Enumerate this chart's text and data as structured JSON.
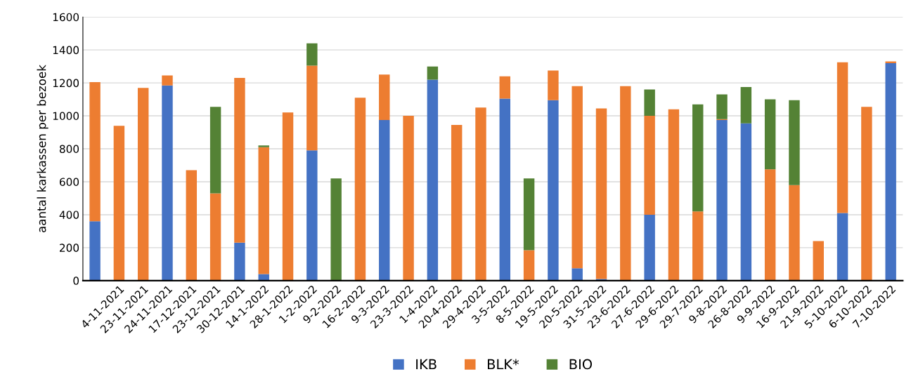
{
  "chart_data": {
    "type": "bar",
    "stacked": true,
    "ylabel": "aantal karkassen per bezoek",
    "categories": [
      null,
      "4-11-2021",
      "23-11-2021",
      "24-11-2021",
      "17-12-2021",
      "23-12-2021",
      "30-12-2021",
      "14-1-2022",
      "28-1-2022",
      "1-2-2022",
      "9-2-2022",
      "16-2-2022",
      "9-3-2022",
      "23-3-2022",
      "1-4-2022",
      "20-4-2022",
      "29-4-2022",
      "3-5-2022",
      "8-5-2022",
      "19-5-2022",
      "20-5-2022",
      "31-5-2022",
      "23-6-2022",
      "27-6-2022",
      "29-6-2022",
      "29-7-2022",
      "9-8-2022",
      "26-8-2022",
      "9-9-2022",
      "16-9-2022",
      "21-9-2022",
      "5-10-2022",
      "6-10-2022",
      "7-10-2022"
    ],
    "series": [
      {
        "name": "IKB",
        "color": "#4472c4",
        "values": [
          360,
          null,
          null,
          1185,
          null,
          null,
          230,
          40,
          null,
          790,
          null,
          null,
          975,
          null,
          1220,
          null,
          null,
          1105,
          null,
          1095,
          75,
          10,
          null,
          400,
          null,
          null,
          975,
          955,
          null,
          null,
          null,
          410,
          null,
          1320
        ]
      },
      {
        "name": "BLK*",
        "color": "#ed7d31",
        "values": [
          845,
          940,
          1170,
          60,
          670,
          530,
          1000,
          770,
          1020,
          515,
          null,
          1110,
          275,
          1000,
          null,
          945,
          1050,
          135,
          185,
          180,
          1105,
          1035,
          1180,
          600,
          1040,
          420,
          5,
          null,
          675,
          580,
          240,
          915,
          1055,
          10
        ]
      },
      {
        "name": "BIO",
        "color": "#548235",
        "values": [
          null,
          null,
          null,
          null,
          null,
          525,
          null,
          10,
          null,
          135,
          620,
          null,
          null,
          null,
          80,
          null,
          null,
          null,
          435,
          null,
          null,
          null,
          null,
          160,
          null,
          650,
          150,
          220,
          425,
          515,
          null,
          null,
          null,
          null
        ]
      }
    ],
    "ylim": [
      0,
      1600
    ],
    "yticks": [
      0,
      200,
      400,
      600,
      800,
      1000,
      1200,
      1400,
      1600
    ],
    "grid": "y",
    "legend": "bottom"
  }
}
